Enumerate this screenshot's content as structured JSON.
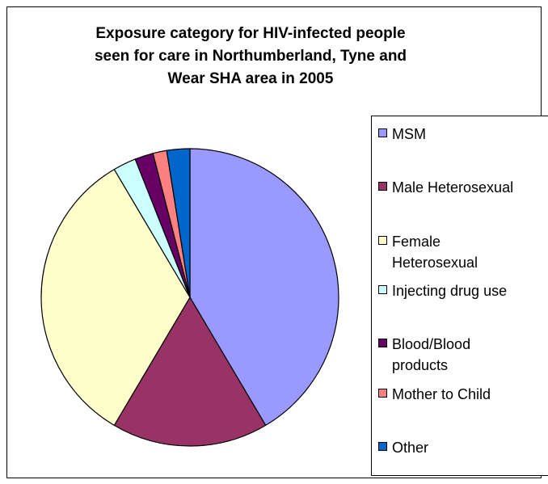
{
  "chart_data": {
    "type": "pie",
    "title_lines": [
      "Exposure category for HIV-infected people",
      "seen for care in Northumberland, Tyne and",
      "Wear SHA area in 2005"
    ],
    "legend_position": "right",
    "slices": [
      {
        "label": "MSM",
        "value": 41.5,
        "color": "#9999ff"
      },
      {
        "label": "Male Heterosexual",
        "value": 17.0,
        "color": "#993366"
      },
      {
        "label_lines": [
          "Female",
          "Heterosexual"
        ],
        "value": 33.0,
        "color": "#ffffcc"
      },
      {
        "label": "Injecting drug use",
        "value": 2.5,
        "color": "#ccffff"
      },
      {
        "label_lines": [
          "Blood/Blood",
          "products"
        ],
        "value": 2.0,
        "color": "#660066"
      },
      {
        "label": "Mother to Child",
        "value": 1.5,
        "color": "#ff8080"
      },
      {
        "label": "Other",
        "value": 2.5,
        "color": "#0066cc"
      }
    ]
  }
}
